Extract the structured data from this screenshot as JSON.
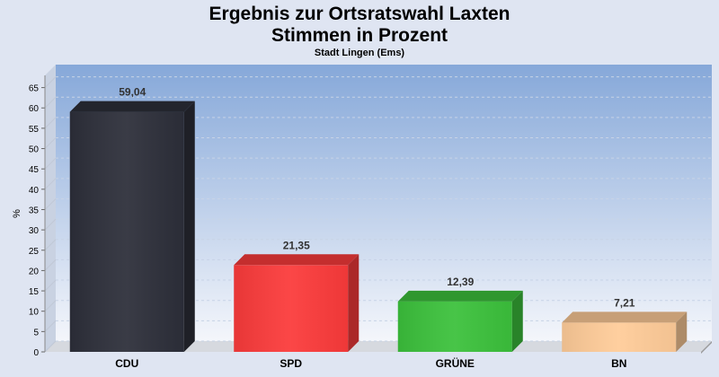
{
  "header": {
    "title_line1": "Ergebnis zur Ortsratswahl Laxten",
    "title_line2": "Stimmen in Prozent",
    "subtitle": "Stadt Lingen (Ems)"
  },
  "chart_data": {
    "type": "bar",
    "title": "Ergebnis zur Ortsratswahl Laxten\nStimmen in Prozent",
    "subtitle": "Stadt Lingen (Ems)",
    "xlabel": "",
    "ylabel": "%",
    "ylim": [
      0,
      68
    ],
    "yticks": [
      0,
      5,
      10,
      15,
      20,
      25,
      30,
      35,
      40,
      45,
      50,
      55,
      60,
      65
    ],
    "categories": [
      "CDU",
      "SPD",
      "GRÜNE",
      "BN"
    ],
    "values": [
      59.04,
      21.35,
      12.39,
      7.21
    ],
    "value_labels": [
      "59,04",
      "21,35",
      "12,39",
      "7,21"
    ],
    "colors": [
      "#2d2f3a",
      "#fb3b3b",
      "#3cc13c",
      "#ffcc99"
    ],
    "grid": true,
    "legend": "none"
  }
}
